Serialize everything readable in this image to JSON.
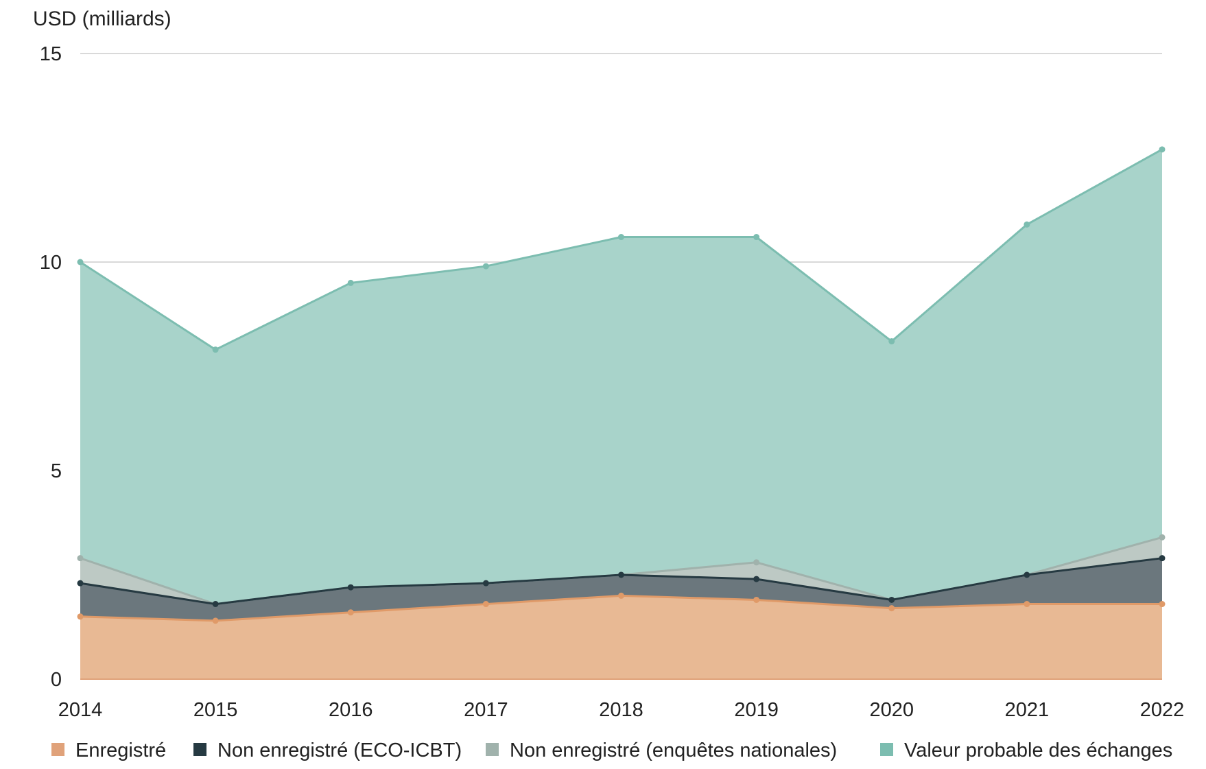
{
  "chart_data": {
    "type": "area",
    "stacked": true,
    "ylabel": "USD (milliards)",
    "xlabel": "",
    "ylim": [
      0,
      15
    ],
    "yticks": [
      0,
      5,
      10,
      15
    ],
    "grid": true,
    "legend_position": "bottom",
    "x": [
      "2014",
      "2015",
      "2016",
      "2017",
      "2018",
      "2019",
      "2020",
      "2021",
      "2022"
    ],
    "series": [
      {
        "name": "Enregistré",
        "fill": "#e8b994",
        "line": "#e09a68",
        "values": [
          1.5,
          1.4,
          1.6,
          1.8,
          2.0,
          1.9,
          1.7,
          1.8,
          1.8
        ]
      },
      {
        "name": "Non enregistré (ECO-ICBT)",
        "fill": "#6b777d",
        "line": "#263a42",
        "values": [
          0.8,
          0.4,
          0.6,
          0.5,
          0.5,
          0.5,
          0.2,
          0.7,
          1.1
        ]
      },
      {
        "name": "Non enregistré (enquêtes nationales)",
        "fill": "#bdc9c4",
        "line": "#a0b2ac",
        "values": [
          0.6,
          0.0,
          0.0,
          0.0,
          0.0,
          0.4,
          0.0,
          0.0,
          0.5
        ]
      },
      {
        "name": "Valeur probable des échanges",
        "fill": "#a8d3ca",
        "line": "#7cbdb0",
        "values": [
          7.1,
          6.1,
          7.3,
          7.6,
          8.1,
          7.8,
          6.2,
          8.4,
          9.3
        ]
      }
    ]
  }
}
